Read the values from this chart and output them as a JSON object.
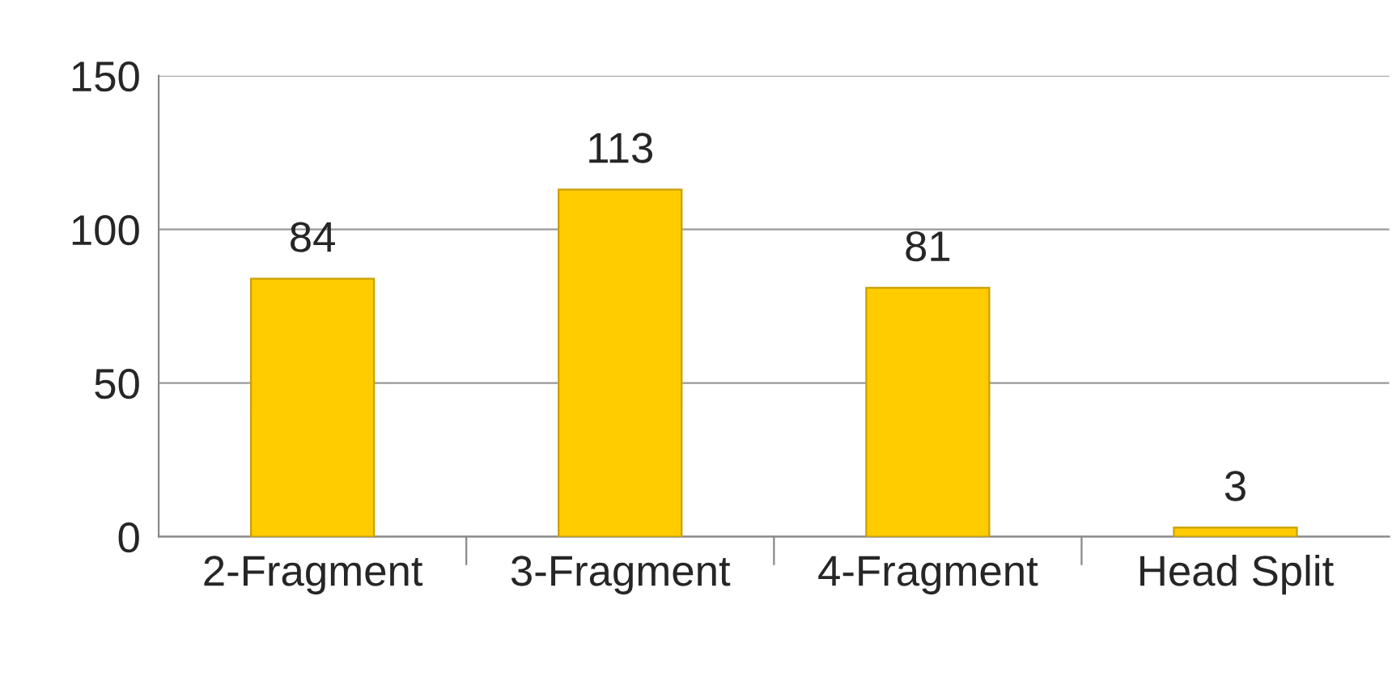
{
  "chart_data": {
    "type": "bar",
    "categories": [
      "2-Fragment",
      "3-Fragment",
      "4-Fragment",
      "Head Split"
    ],
    "values": [
      84,
      113,
      81,
      3
    ],
    "color": "#ffcc00",
    "ylim": [
      0,
      150
    ],
    "yticks": [
      0,
      50,
      100,
      150
    ],
    "grid": "y",
    "data_labels": true
  }
}
